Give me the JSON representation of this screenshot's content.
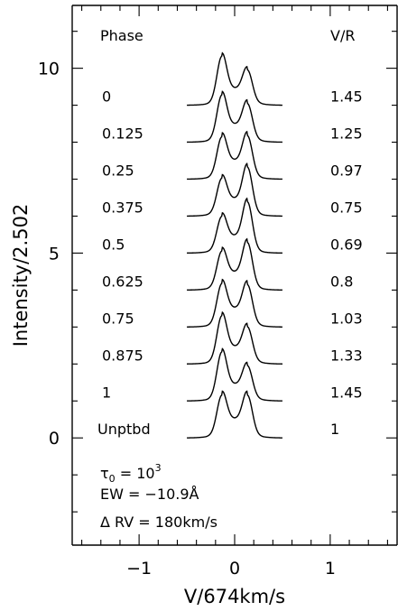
{
  "chart_data": {
    "type": "line",
    "xlabel": "V/674km/s",
    "ylabel": "Intensity/2.502",
    "xlim": [
      -1.7,
      1.7
    ],
    "ylim": [
      -2.9,
      11.7
    ],
    "x_ticks": [
      -1,
      0,
      1
    ],
    "y_ticks": [
      0,
      5,
      10
    ],
    "column_headers": {
      "phase": "Phase",
      "vr": "V/R"
    },
    "profiles": [
      {
        "phase": "0",
        "vr": "1.45",
        "offset": 9.0,
        "blue_peak": 1.2,
        "red_peak": 0.83
      },
      {
        "phase": "0.125",
        "vr": "1.25",
        "offset": 8.0,
        "blue_peak": 1.15,
        "red_peak": 0.92
      },
      {
        "phase": "0.25",
        "vr": "0.97",
        "offset": 7.0,
        "blue_peak": 1.02,
        "red_peak": 1.05
      },
      {
        "phase": "0.375",
        "vr": "0.75",
        "offset": 6.0,
        "blue_peak": 0.9,
        "red_peak": 1.2
      },
      {
        "phase": "0.5",
        "vr": "0.69",
        "offset": 5.0,
        "blue_peak": 0.87,
        "red_peak": 1.26
      },
      {
        "phase": "0.625",
        "vr": "0.8",
        "offset": 4.0,
        "blue_peak": 0.93,
        "red_peak": 1.16
      },
      {
        "phase": "0.75",
        "vr": "1.03",
        "offset": 3.0,
        "blue_peak": 1.05,
        "red_peak": 1.02
      },
      {
        "phase": "0.875",
        "vr": "1.33",
        "offset": 2.0,
        "blue_peak": 1.18,
        "red_peak": 0.88
      },
      {
        "phase": "1",
        "vr": "1.45",
        "offset": 1.0,
        "blue_peak": 1.2,
        "red_peak": 0.83
      },
      {
        "phase": "Unptbd",
        "vr": "1",
        "offset": 0.0,
        "blue_peak": 1.03,
        "red_peak": 1.03
      }
    ],
    "annotations": [
      {
        "name": "tau",
        "symbol": "τ",
        "subscript": "0",
        "text": " = 10",
        "superscript": "3"
      },
      {
        "name": "ew",
        "text": "EW = −10.9Å"
      },
      {
        "name": "delta-rv",
        "text": "Δ RV = 180km/s"
      }
    ]
  }
}
